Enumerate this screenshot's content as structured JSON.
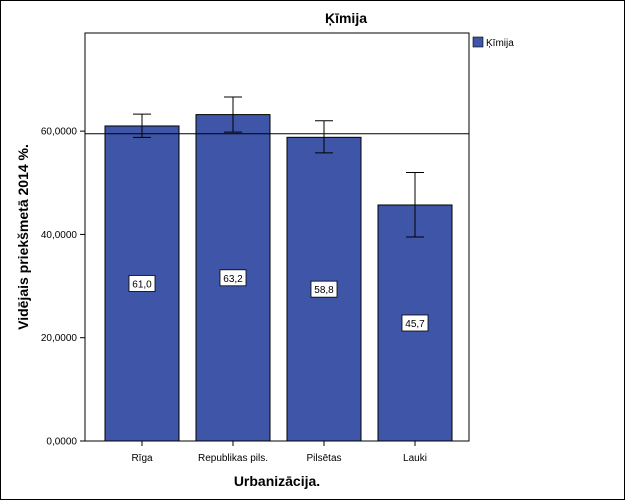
{
  "chart_data": {
    "type": "bar",
    "title": "Ķīmija",
    "xlabel": "Urbanizācija.",
    "ylabel": "Vidējais priekšmetā 2014 %.",
    "categories": [
      "Rīga",
      "Republikas pils.",
      "Pilsētas",
      "Lauki"
    ],
    "series": [
      {
        "name": "Ķīmija",
        "values": [
          61.0,
          63.2,
          58.8,
          45.7
        ],
        "data_labels": [
          "61,0",
          "63,2",
          "58,8",
          "45,7"
        ],
        "error_low": [
          58.8,
          59.8,
          55.8,
          39.5
        ],
        "error_high": [
          63.3,
          66.6,
          62.0,
          52.0
        ],
        "color": "#3f56a8"
      }
    ],
    "reference_line": 59.5,
    "ylim": [
      0,
      79
    ],
    "yticks": [
      0,
      20,
      40,
      60
    ],
    "ytick_labels": [
      "0,0000",
      "20,0000",
      "40,0000",
      "60,0000"
    ],
    "legend_position": "right-top",
    "grid": false
  }
}
